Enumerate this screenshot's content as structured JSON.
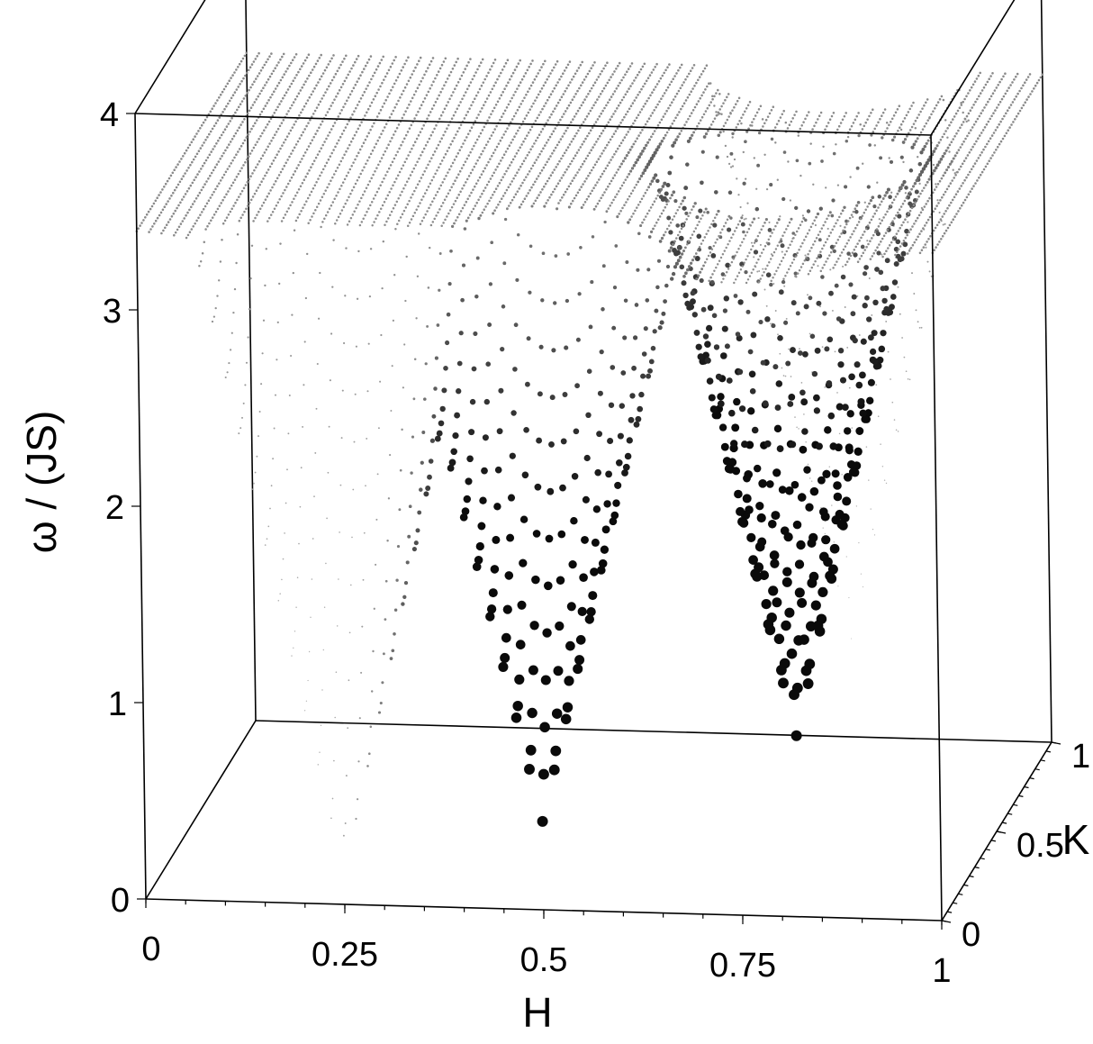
{
  "chart_data": {
    "type": "scatter",
    "dimensions": "3d",
    "title": "",
    "xlabel": "H",
    "ylabel": "K",
    "zlabel": "ω / (JS)",
    "xlim": [
      0,
      1
    ],
    "ylim": [
      0,
      1
    ],
    "zlim": [
      0,
      4
    ],
    "x_ticks": [
      "0",
      "0.25",
      "0.5",
      "0.75",
      "1"
    ],
    "y_ticks": [
      "0",
      "0.5",
      "1"
    ],
    "z_ticks": [
      "0",
      "1",
      "2",
      "3",
      "4"
    ],
    "grid": false,
    "legend": "none",
    "marker_size_encodes": "intensity",
    "surface": {
      "description_value": "spin-wave dispersion surface",
      "max_energy": 3.4,
      "min_energy": 0.35
    },
    "minima": [
      {
        "H": 0.25,
        "K": 0.0,
        "omega": 0.35
      },
      {
        "H": 0.5,
        "K": 0.0,
        "omega": 0.45
      },
      {
        "H": 0.75,
        "K": 0.5,
        "omega": 0.55
      },
      {
        "H": 0.75,
        "K": 1.0,
        "omega": 0.5
      }
    ],
    "colors": {
      "strong": "#111111",
      "weak": "#bbbbbb",
      "axis": "#000000"
    }
  }
}
